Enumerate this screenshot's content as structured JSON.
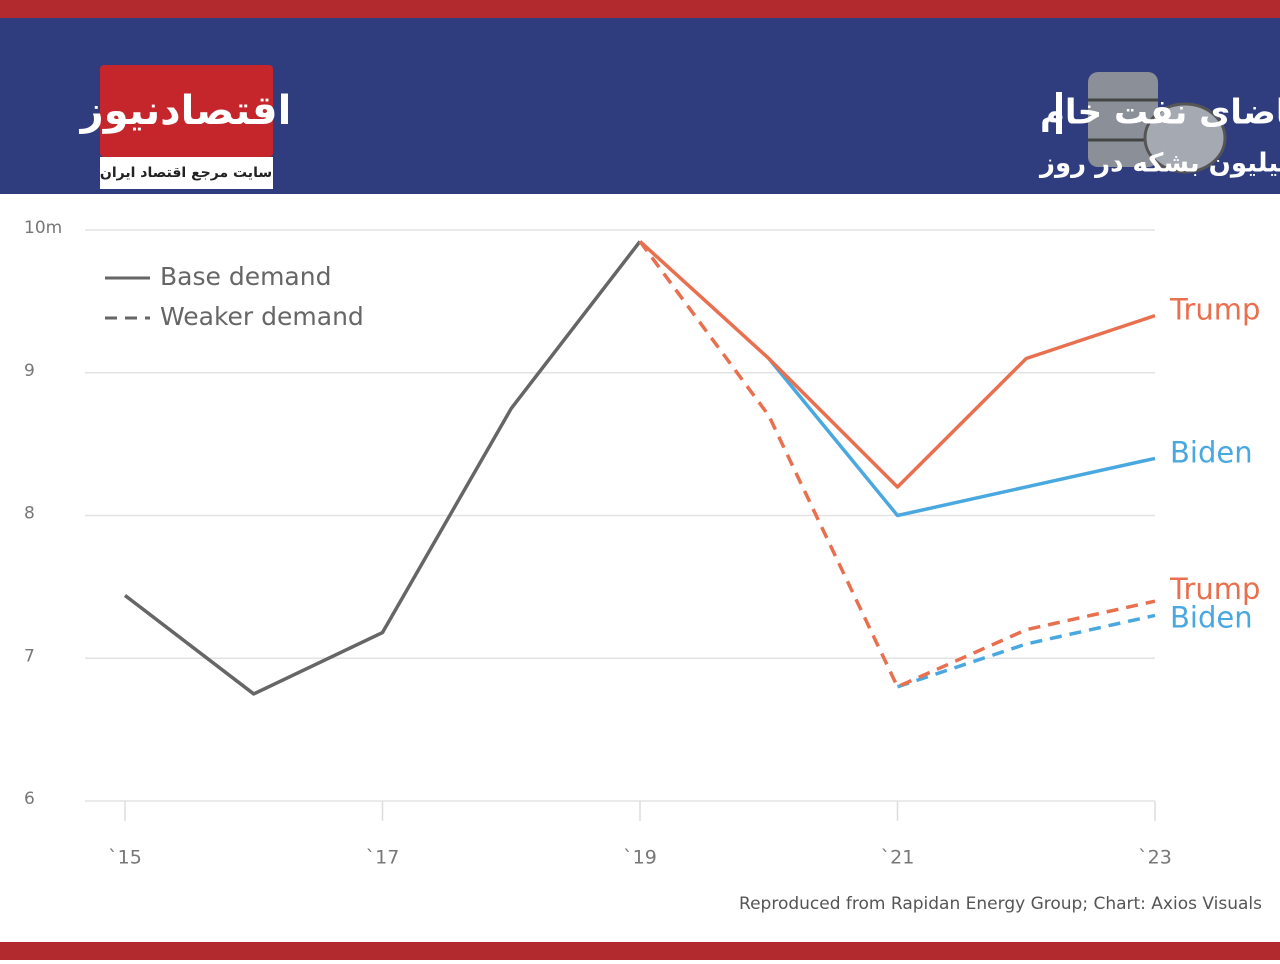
{
  "brand": {
    "name": "اقتصادنیوز",
    "tagline": "سایت مرجع اقتصاد ایران"
  },
  "chart_data": {
    "type": "line",
    "title": "پیش‌بینی تقاضای نفت خام",
    "subtitle": "واحد: میلیون بشکه در روز",
    "source": "Reproduced from Rapidan Energy Group; Chart: Axios Visuals",
    "x": [
      2015,
      2016,
      2017,
      2018,
      2019,
      2020,
      2021,
      2022,
      2023
    ],
    "xlim": [
      2015,
      2023
    ],
    "xticks": [
      {
        "value": 2015,
        "label": "`15"
      },
      {
        "value": 2017,
        "label": "`17"
      },
      {
        "value": 2019,
        "label": "`19"
      },
      {
        "value": 2021,
        "label": "`21"
      },
      {
        "value": 2023,
        "label": "`23"
      }
    ],
    "ylim": [
      6,
      10
    ],
    "yticks": [
      {
        "value": 10,
        "label": "10m"
      },
      9,
      8,
      7,
      6
    ],
    "grid": true,
    "legend": [
      {
        "label": "Base demand",
        "style": "solid"
      },
      {
        "label": "Weaker demand",
        "style": "dashed"
      }
    ],
    "series": [
      {
        "color": "#666666",
        "style": "solid",
        "values": [
          7.44,
          6.75,
          7.18,
          8.75,
          9.92,
          null,
          null,
          null,
          null
        ]
      },
      {
        "name": "Biden",
        "color": "#4aa8e0",
        "style": "solid",
        "values": [
          null,
          null,
          null,
          null,
          null,
          9.1,
          8.0,
          8.2,
          8.4
        ]
      },
      {
        "name": "Trump",
        "color": "#e8704f",
        "style": "solid",
        "values": [
          null,
          null,
          null,
          null,
          9.92,
          9.1,
          8.2,
          9.1,
          9.4
        ]
      },
      {
        "name": "Biden",
        "color": "#4aa8e0",
        "style": "dashed",
        "values": [
          null,
          null,
          null,
          null,
          null,
          null,
          6.8,
          7.1,
          7.3
        ]
      },
      {
        "name": "Trump",
        "color": "#e8704f",
        "style": "dashed",
        "values": [
          null,
          null,
          null,
          null,
          9.92,
          8.7,
          6.8,
          7.2,
          7.4
        ]
      }
    ]
  }
}
